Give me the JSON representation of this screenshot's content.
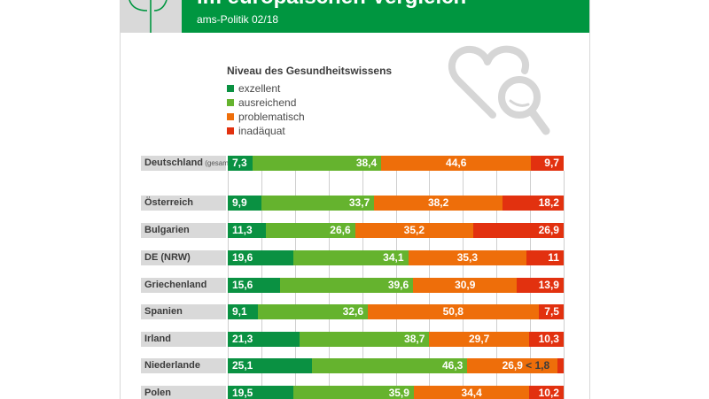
{
  "header": {
    "title": "im europäischen Vergleich",
    "subtitle": "ams-Politik 02/18"
  },
  "colors": {
    "header_green": "#009640",
    "exzellent": "#0a9142",
    "ausreichend": "#65b32e",
    "problematisch": "#ee6e0a",
    "inadaequat": "#e2310f",
    "label_bg": "#d9d9d9",
    "icon_gray": "#d6d6d6"
  },
  "icons": {
    "logo": "tree-logo-icon",
    "illustration": "heart-magnifier-icon"
  },
  "chart_data": {
    "type": "bar",
    "orientation": "horizontal",
    "stacked": true,
    "normalized_percent": true,
    "title": "",
    "legend_title": "Niveau des Gesundheitswissens",
    "legend_position": "top",
    "xlim": [
      0,
      100
    ],
    "grid": true,
    "grid_step": 10,
    "categories": [
      {
        "name": "Deutschland",
        "suffix": "(gesamt)"
      },
      {
        "name": "Österreich",
        "suffix": ""
      },
      {
        "name": "Bulgarien",
        "suffix": ""
      },
      {
        "name": "DE (NRW)",
        "suffix": ""
      },
      {
        "name": "Griechenland",
        "suffix": ""
      },
      {
        "name": "Spanien",
        "suffix": ""
      },
      {
        "name": "Irland",
        "suffix": ""
      },
      {
        "name": "Niederlande",
        "suffix": ""
      },
      {
        "name": "Polen",
        "suffix": ""
      }
    ],
    "series": [
      {
        "name": "exzellent",
        "color": "#0a9142",
        "values": [
          7.3,
          9.9,
          11.3,
          19.6,
          15.6,
          9.1,
          21.3,
          25.1,
          19.5
        ],
        "labels": [
          "7,3",
          "9,9",
          "11,3",
          "19,6",
          "15,6",
          "9,1",
          "21,3",
          "25,1",
          "19,5"
        ]
      },
      {
        "name": "ausreichend",
        "color": "#65b32e",
        "values": [
          38.4,
          33.7,
          26.6,
          34.1,
          39.6,
          32.6,
          38.7,
          46.3,
          35.9
        ],
        "labels": [
          "38,4",
          "33,7",
          "26,6",
          "34,1",
          "39,6",
          "32,6",
          "38,7",
          "46,3",
          "35,9"
        ]
      },
      {
        "name": "problematisch",
        "color": "#ee6e0a",
        "values": [
          44.6,
          38.2,
          35.2,
          35.3,
          30.9,
          50.8,
          29.7,
          26.9,
          34.4
        ],
        "labels": [
          "44,6",
          "38,2",
          "35,2",
          "35,3",
          "30,9",
          "50,8",
          "29,7",
          "26,9",
          "34,4"
        ]
      },
      {
        "name": "inadäquat",
        "color": "#e2310f",
        "values": [
          9.7,
          18.2,
          26.9,
          11.0,
          13.9,
          7.5,
          10.3,
          1.8,
          10.2
        ],
        "labels": [
          "9,7",
          "18,2",
          "26,9",
          "11",
          "13,9",
          "7,5",
          "10,3",
          "< 1,8",
          "10,2"
        ]
      }
    ]
  }
}
